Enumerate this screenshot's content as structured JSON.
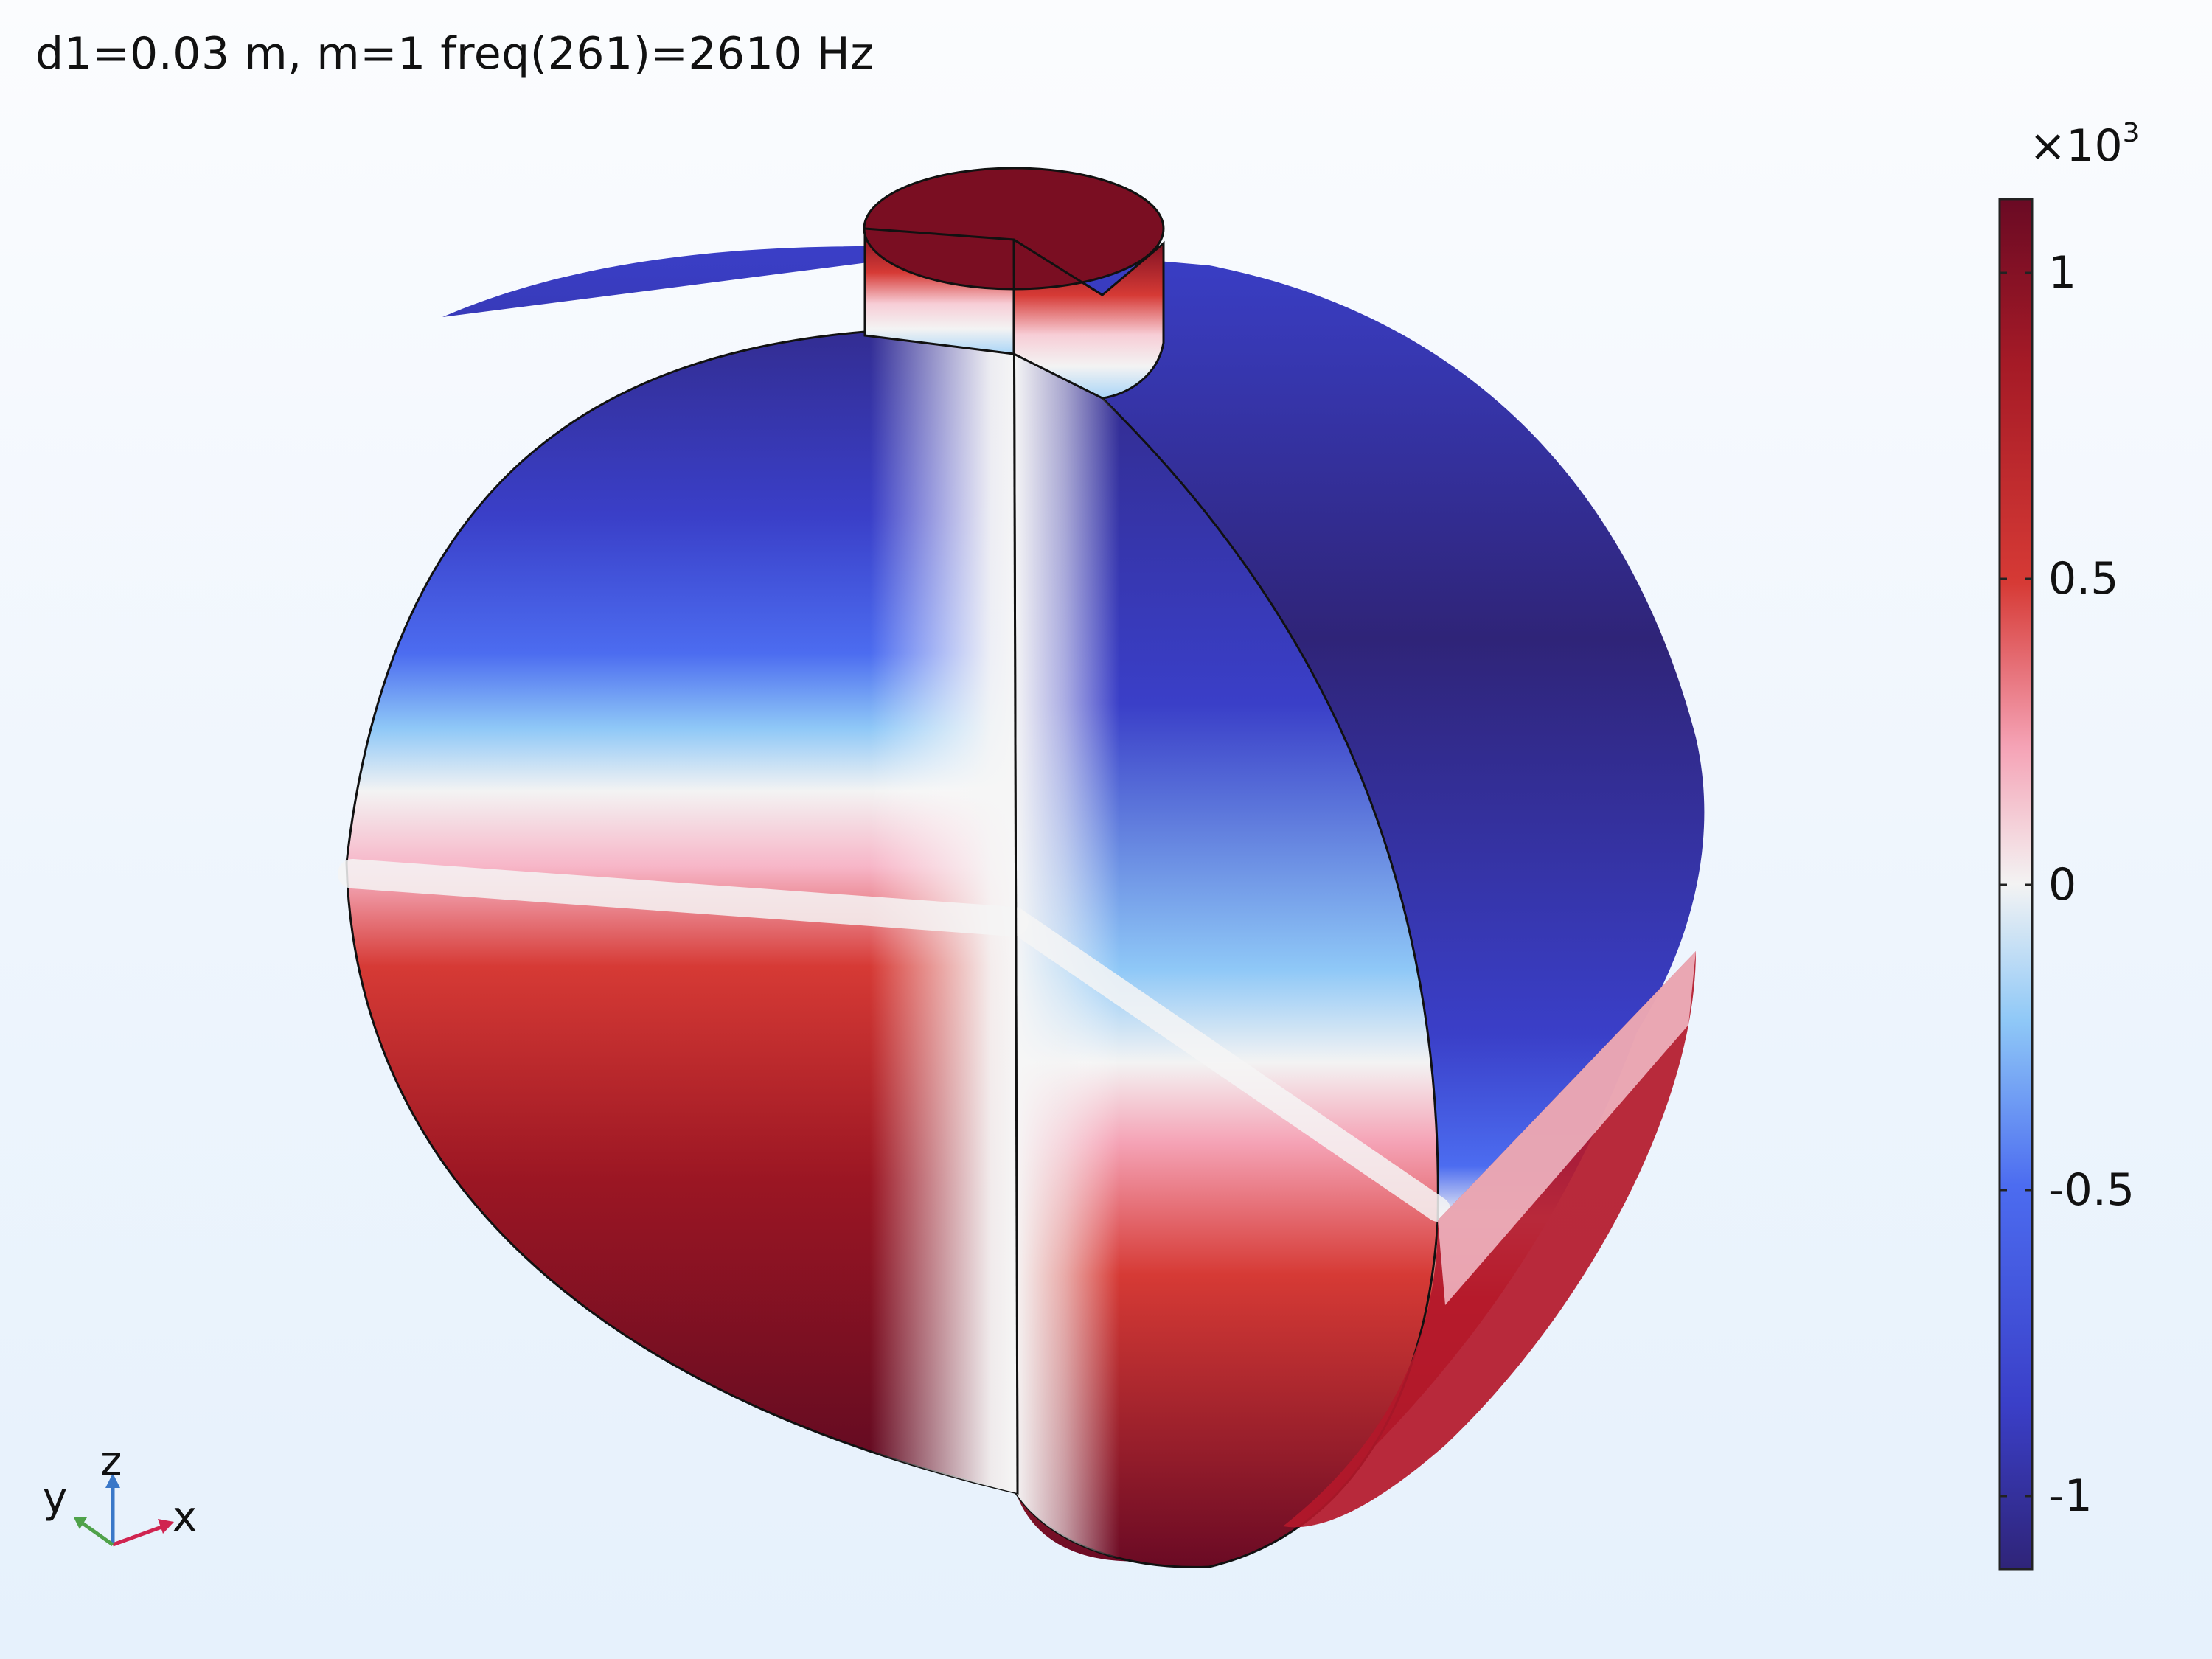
{
  "title": "d1=0.03 m, m=1 freq(261)=2610 Hz",
  "colorbar": {
    "exponent_base": "×10",
    "exponent_power": "3",
    "tick_labels": [
      "1",
      "0.5",
      "0",
      "-0.5",
      "-1"
    ],
    "colors": {
      "max": "#6a0a24",
      "high": "#d03030",
      "mid": "#f3f3f3",
      "low": "#3f55e0",
      "min": "#2f2478"
    }
  },
  "axis_triad": {
    "x": "x",
    "y": "y",
    "z": "z"
  }
}
